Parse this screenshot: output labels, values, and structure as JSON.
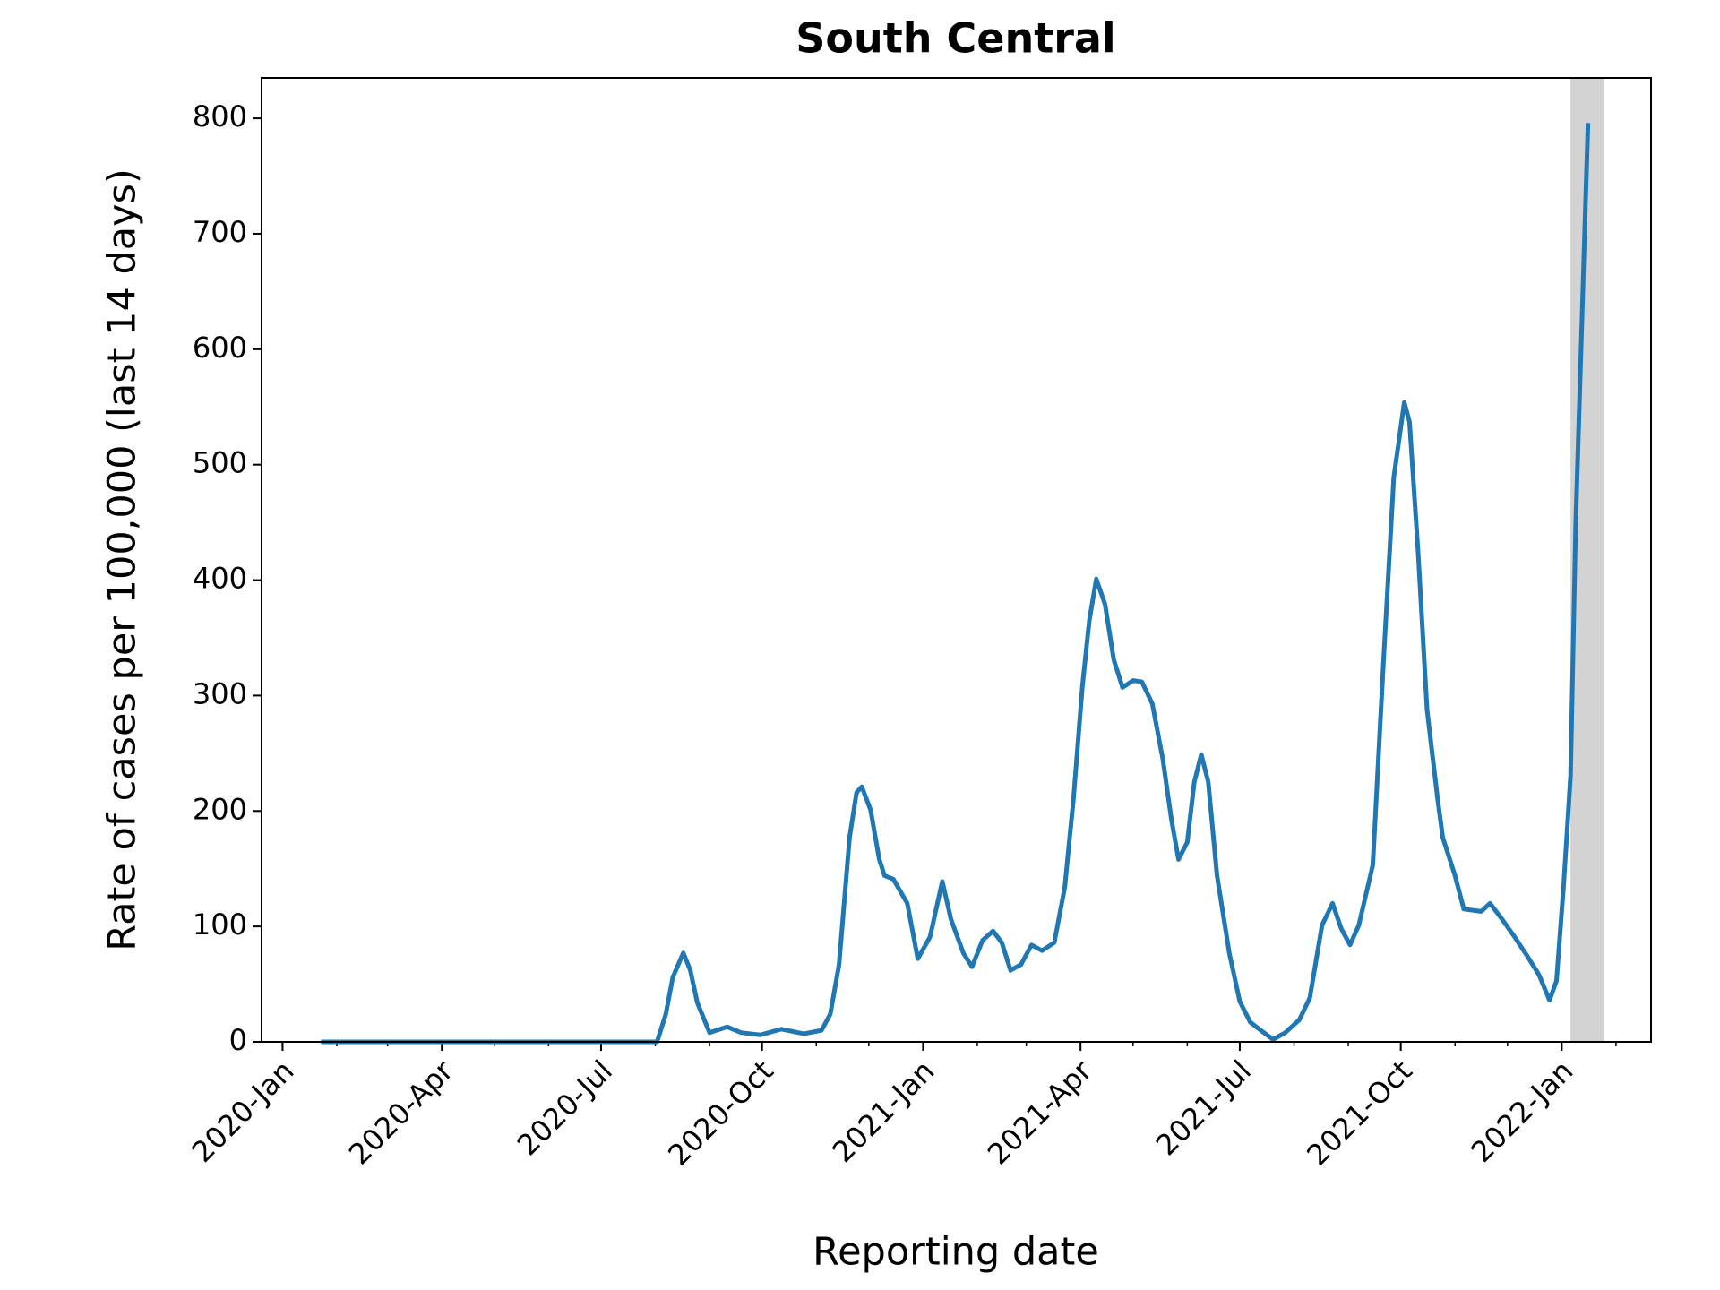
{
  "chart_data": {
    "type": "line",
    "title": "South Central",
    "x_label": "Reporting date",
    "y_label": "Rate of cases per 100,000 (last 14 days)",
    "x": [
      "2020-01-23",
      "2020-08-02",
      "2020-08-07",
      "2020-08-11",
      "2020-08-17",
      "2020-08-21",
      "2020-08-25",
      "2020-09-01",
      "2020-09-11",
      "2020-09-19",
      "2020-09-30",
      "2020-10-12",
      "2020-10-25",
      "2020-11-04",
      "2020-11-09",
      "2020-11-14",
      "2020-11-20",
      "2020-11-24",
      "2020-11-27",
      "2020-12-02",
      "2020-12-07",
      "2020-12-10",
      "2020-12-15",
      "2020-12-23",
      "2020-12-29",
      "2021-01-05",
      "2021-01-12",
      "2021-01-17",
      "2021-01-24",
      "2021-01-29",
      "2021-02-04",
      "2021-02-10",
      "2021-02-15",
      "2021-02-20",
      "2021-02-26",
      "2021-03-04",
      "2021-03-10",
      "2021-03-17",
      "2021-03-23",
      "2021-03-28",
      "2021-04-02",
      "2021-04-06",
      "2021-04-10",
      "2021-04-15",
      "2021-04-20",
      "2021-04-25",
      "2021-05-01",
      "2021-05-06",
      "2021-05-12",
      "2021-05-18",
      "2021-05-23",
      "2021-05-27",
      "2021-06-01",
      "2021-06-05",
      "2021-06-09",
      "2021-06-13",
      "2021-06-18",
      "2021-06-25",
      "2021-07-01",
      "2021-07-07",
      "2021-07-13",
      "2021-07-20",
      "2021-07-27",
      "2021-08-04",
      "2021-08-10",
      "2021-08-17",
      "2021-08-23",
      "2021-08-28",
      "2021-09-02",
      "2021-09-07",
      "2021-09-15",
      "2021-09-21",
      "2021-09-27",
      "2021-10-03",
      "2021-10-06",
      "2021-10-11",
      "2021-10-16",
      "2021-10-22",
      "2021-10-25",
      "2021-11-01",
      "2021-11-06",
      "2021-11-16",
      "2021-11-21",
      "2021-11-28",
      "2021-12-05",
      "2021-12-12",
      "2021-12-19",
      "2021-12-25",
      "2021-12-29",
      "2022-01-02",
      "2022-01-06",
      "2022-01-09",
      "2022-01-16"
    ],
    "series": [
      {
        "name": "South Central",
        "color": "#1f77b4",
        "values": [
          0,
          0,
          24,
          56,
          77,
          62,
          34,
          8,
          13,
          8,
          6,
          11,
          7,
          10,
          24,
          67,
          177,
          216,
          221,
          201,
          158,
          144,
          141,
          120,
          72,
          91,
          139,
          106,
          77,
          65,
          88,
          96,
          86,
          62,
          67,
          84,
          79,
          86,
          134,
          211,
          307,
          365,
          401,
          379,
          331,
          307,
          313,
          312,
          293,
          245,
          192,
          158,
          173,
          225,
          249,
          225,
          144,
          77,
          35,
          17,
          10,
          2,
          8,
          19,
          38,
          101,
          120,
          98,
          84,
          101,
          153,
          326,
          489,
          554,
          537,
          422,
          288,
          211,
          177,
          144,
          115,
          113,
          120,
          106,
          91,
          75,
          58,
          36,
          53,
          134,
          230,
          451,
          796
        ]
      }
    ],
    "shaded_region": {
      "start": "2022-01-06",
      "end": "2022-01-25",
      "color": "#d3d3d3"
    },
    "xlim": [
      "2019-12-20",
      "2022-02-21"
    ],
    "xticks": [
      {
        "value": "2020-01-01",
        "label": "2020-Jan"
      },
      {
        "value": "2020-04-01",
        "label": "2020-Apr"
      },
      {
        "value": "2020-07-01",
        "label": "2020-Jul"
      },
      {
        "value": "2020-10-01",
        "label": "2020-Oct"
      },
      {
        "value": "2021-01-01",
        "label": "2021-Jan"
      },
      {
        "value": "2021-04-01",
        "label": "2021-Apr"
      },
      {
        "value": "2021-07-01",
        "label": "2021-Jul"
      },
      {
        "value": "2021-10-01",
        "label": "2021-Oct"
      },
      {
        "value": "2022-01-01",
        "label": "2022-Jan"
      }
    ],
    "xticks_minor": [
      "2020-02-01",
      "2020-03-01",
      "2020-05-01",
      "2020-06-01",
      "2020-08-01",
      "2020-09-01",
      "2020-11-01",
      "2020-12-01",
      "2021-02-01",
      "2021-03-01",
      "2021-05-01",
      "2021-06-01",
      "2021-08-01",
      "2021-09-01",
      "2021-11-01",
      "2021-12-01",
      "2022-02-01"
    ],
    "ylim": [
      0,
      835
    ],
    "yticks": [
      0,
      100,
      200,
      300,
      400,
      500,
      600,
      700,
      800
    ],
    "grid": false
  }
}
